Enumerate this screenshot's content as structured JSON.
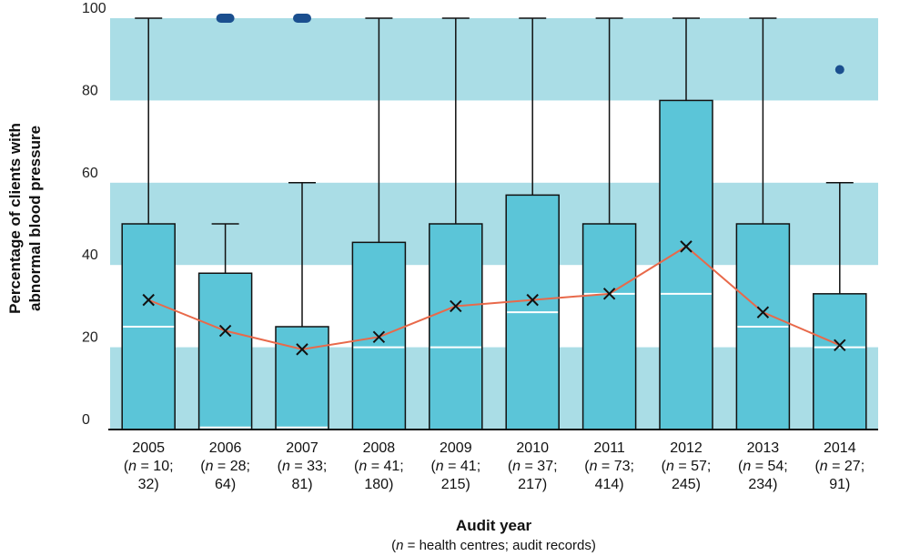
{
  "chart_data": {
    "type": "box",
    "title": "",
    "ylabel_line1": "Percentage of clients with",
    "ylabel_line2": "abnormal blood pressure",
    "xlabel": "Audit year",
    "xsubtitle_n": "n",
    "xsubtitle_rest": " = health centres; audit records)",
    "xsubtitle_open": "(",
    "ylim": [
      0,
      100
    ],
    "yticks": [
      0,
      20,
      40,
      60,
      80,
      100
    ],
    "band_color": "#aadde6",
    "box_color": "#5bc5d8",
    "mean_line_color": "#e8694a",
    "outlier_color": "#1b4f8f",
    "categories": [
      {
        "year": "2005",
        "n_label": "n",
        "rest": " = 10;",
        "records": "32)",
        "min": 0,
        "q1": 0,
        "median": 25,
        "q3": 50,
        "max": 100,
        "mean": 31.5,
        "outliers": []
      },
      {
        "year": "2006",
        "n_label": "n",
        "rest": " = 28;",
        "records": "64)",
        "min": 0,
        "q1": 0,
        "median": 0.5,
        "q3": 38,
        "max": 50,
        "mean": 24,
        "outliers": [
          100
        ]
      },
      {
        "year": "2007",
        "n_label": "n",
        "rest": " = 33;",
        "records": "81)",
        "min": 0,
        "q1": 0,
        "median": 0.5,
        "q3": 25,
        "max": 60,
        "mean": 19.5,
        "outliers": [
          100
        ]
      },
      {
        "year": "2008",
        "n_label": "n",
        "rest": " = 41;",
        "records": "180)",
        "min": 0,
        "q1": 0,
        "median": 20,
        "q3": 45.5,
        "max": 100,
        "mean": 22.5,
        "outliers": []
      },
      {
        "year": "2009",
        "n_label": "n",
        "rest": " = 41;",
        "records": "215)",
        "min": 0,
        "q1": 0,
        "median": 20,
        "q3": 50,
        "max": 100,
        "mean": 30,
        "outliers": []
      },
      {
        "year": "2010",
        "n_label": "n",
        "rest": " = 37;",
        "records": "217)",
        "min": 0,
        "q1": 0,
        "median": 28.5,
        "q3": 57,
        "max": 100,
        "mean": 31.5,
        "outliers": []
      },
      {
        "year": "2011",
        "n_label": "n",
        "rest": " = 73;",
        "records": "414)",
        "min": 0,
        "q1": 0,
        "median": 33,
        "q3": 50,
        "max": 100,
        "mean": 33,
        "outliers": []
      },
      {
        "year": "2012",
        "n_label": "n",
        "rest": " = 57;",
        "records": "245)",
        "min": 0,
        "q1": 0,
        "median": 33,
        "q3": 80,
        "max": 100,
        "mean": 44.5,
        "outliers": []
      },
      {
        "year": "2013",
        "n_label": "n",
        "rest": " = 54;",
        "records": "234)",
        "min": 0,
        "q1": 0,
        "median": 25,
        "q3": 50,
        "max": 100,
        "mean": 28.5,
        "outliers": []
      },
      {
        "year": "2014",
        "n_label": "n",
        "rest": " = 27;",
        "records": "91)",
        "min": 0,
        "q1": 0,
        "median": 20,
        "q3": 33,
        "max": 60,
        "mean": 20.5,
        "outliers": [
          87.5
        ]
      }
    ]
  }
}
